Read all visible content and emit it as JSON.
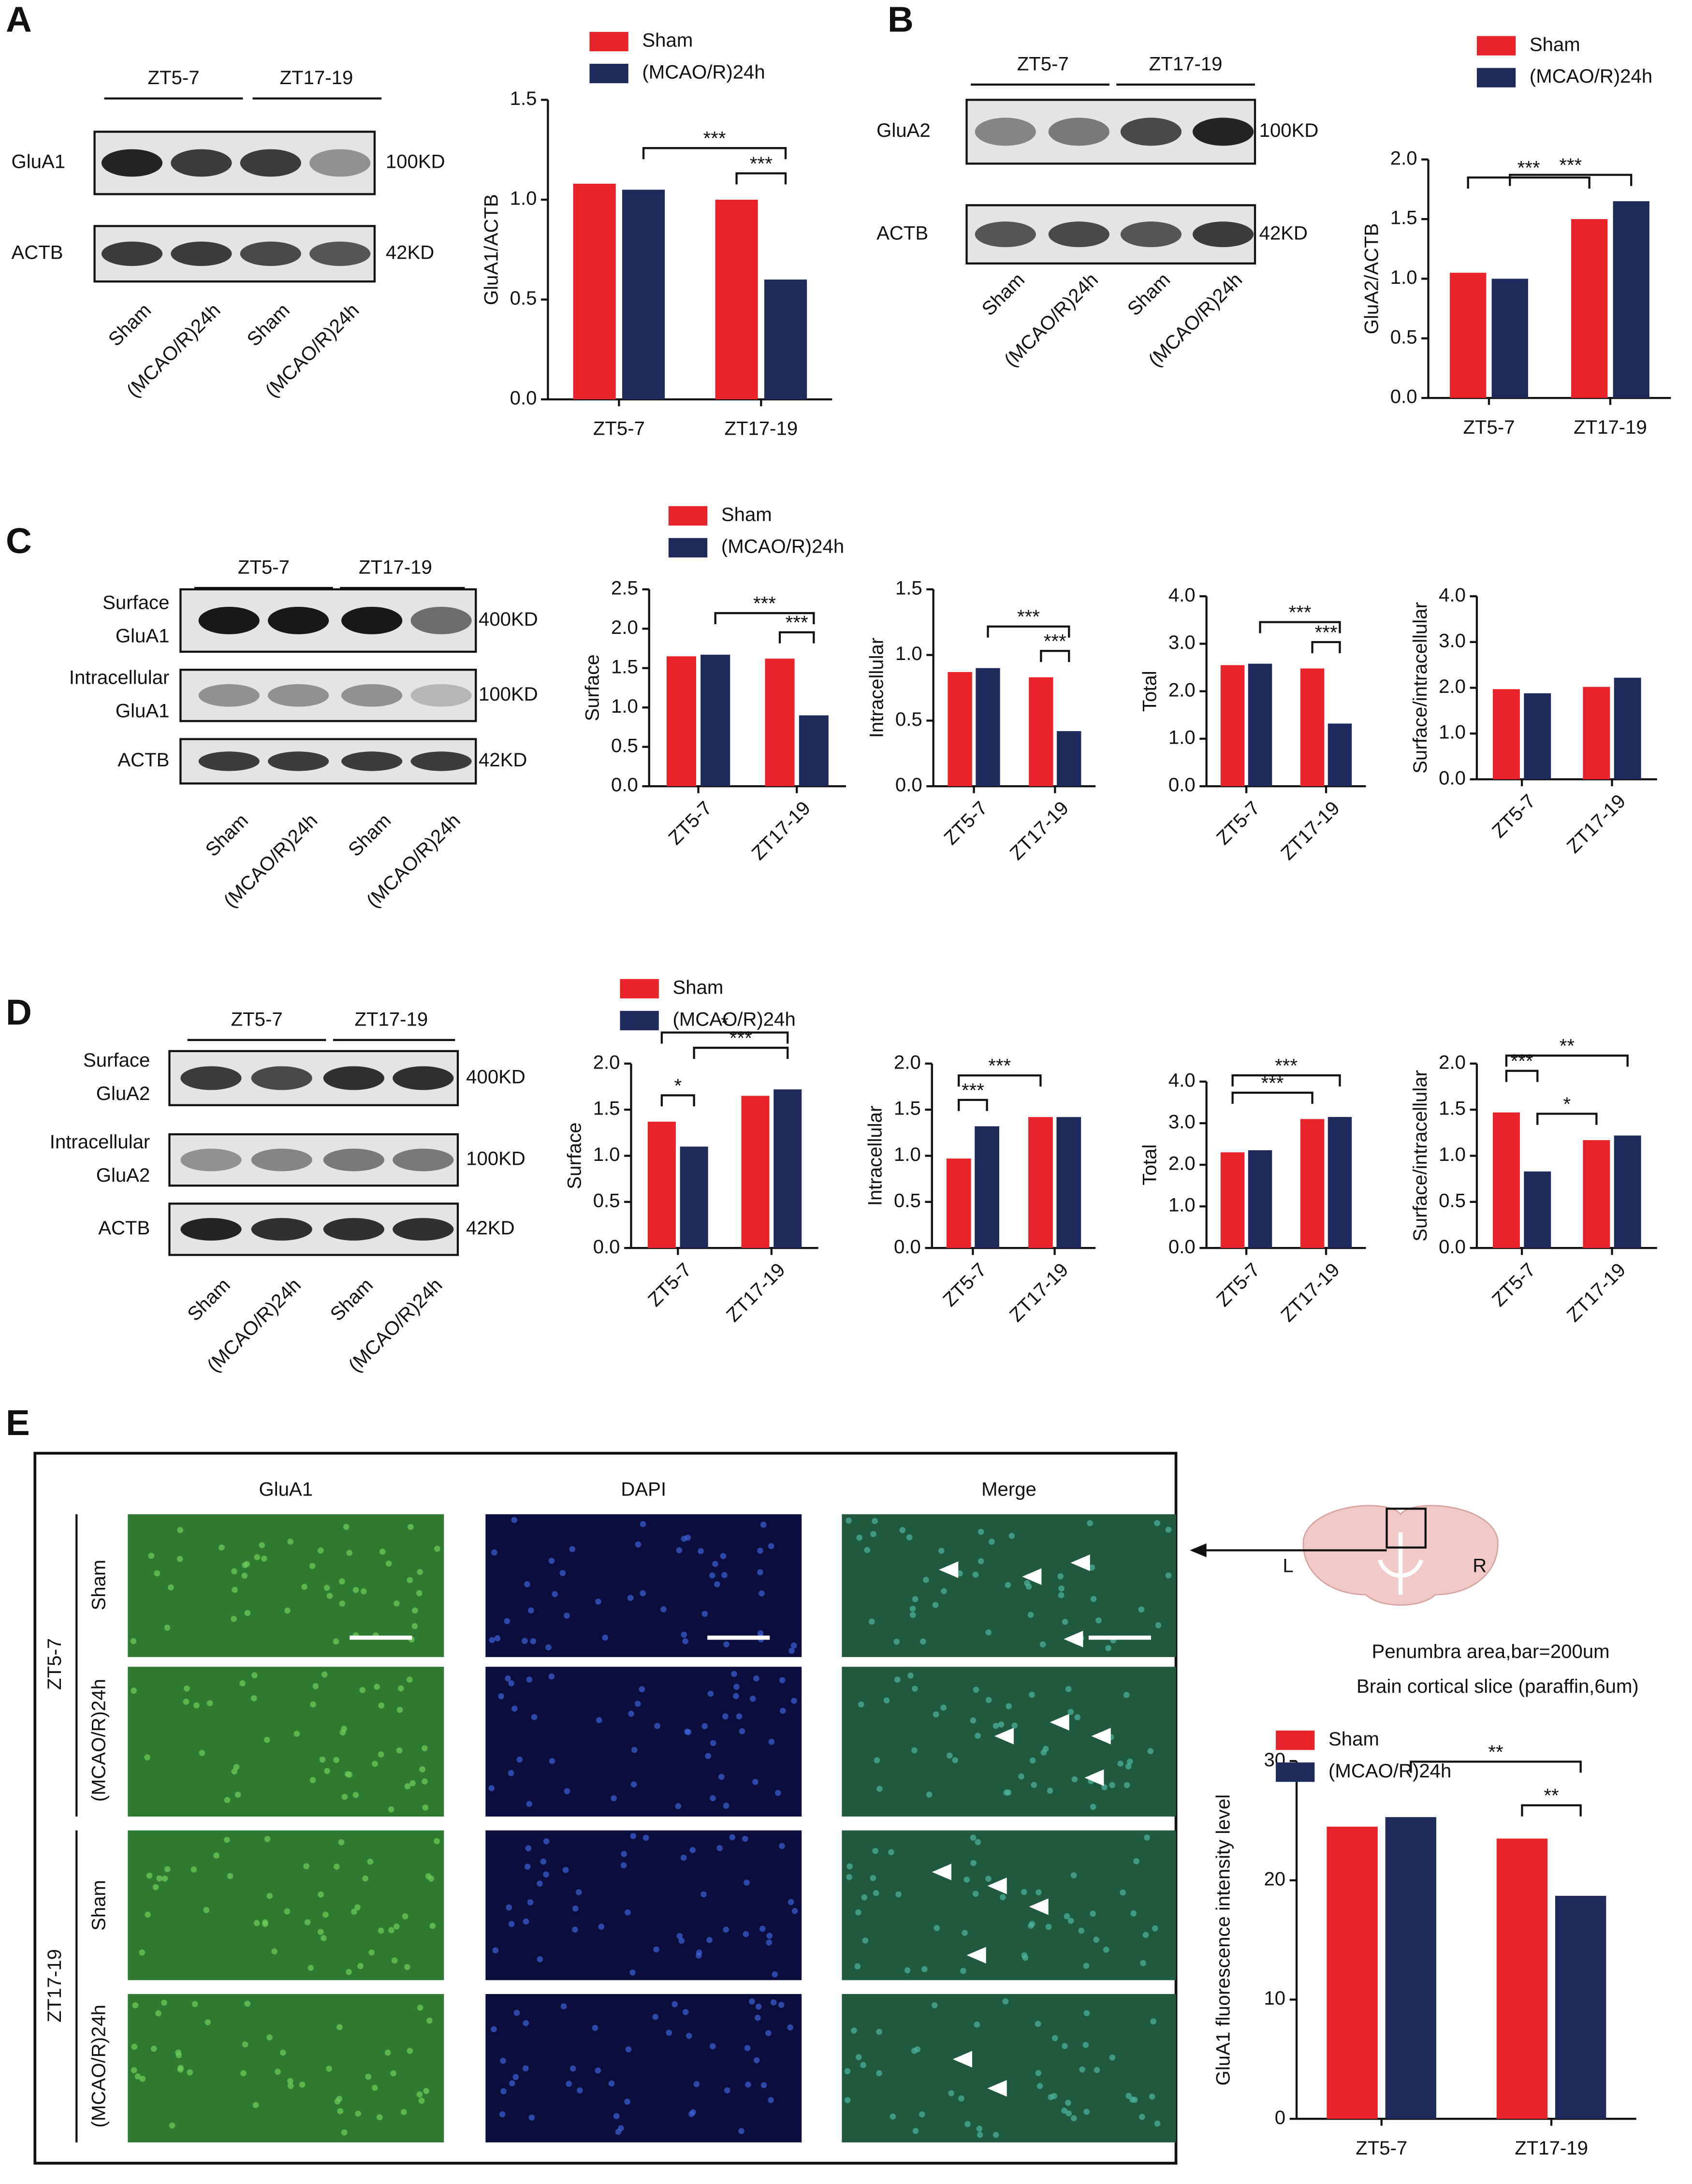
{
  "panel_labels": [
    "A",
    "B",
    "C",
    "D",
    "E"
  ],
  "blots": [
    {
      "groups": [
        "ZT5-7",
        "ZT17-19"
      ],
      "lanes": [
        "Sham",
        "(MCAO/R)24h",
        "Sham",
        "(MCAO/R)24h"
      ],
      "rows": [
        {
          "label": [
            "GluA1"
          ],
          "size": "100KD"
        },
        {
          "label": [
            "ACTB"
          ],
          "size": "42KD"
        }
      ]
    },
    {
      "groups": [
        "ZT5-7",
        "ZT17-19"
      ],
      "lanes": [
        "Sham",
        "(MCAO/R)24h",
        "Sham",
        "(MCAO/R)24h"
      ],
      "rows": [
        {
          "label": [
            "GluA2"
          ],
          "size": "100KD"
        },
        {
          "label": [
            "ACTB"
          ],
          "size": "42KD"
        }
      ]
    },
    {
      "groups": [
        "ZT5-7",
        "ZT17-19"
      ],
      "lanes": [
        "Sham",
        "(MCAO/R)24h",
        "Sham",
        "(MCAO/R)24h"
      ],
      "rows": [
        {
          "label": [
            "Surface",
            "GluA1"
          ],
          "size": "400KD"
        },
        {
          "label": [
            "Intracellular",
            "GluA1"
          ],
          "size": "100KD"
        },
        {
          "label": [
            "ACTB"
          ],
          "size": "42KD"
        }
      ]
    },
    {
      "groups": [
        "ZT5-7",
        "ZT17-19"
      ],
      "lanes": [
        "Sham",
        "(MCAO/R)24h",
        "Sham",
        "(MCAO/R)24h"
      ],
      "rows": [
        {
          "label": [
            "Surface",
            "GluA2"
          ],
          "size": "400KD"
        },
        {
          "label": [
            "Intracellular",
            "GluA2"
          ],
          "size": "100KD"
        },
        {
          "label": [
            "ACTB"
          ],
          "size": "42KD"
        }
      ]
    }
  ],
  "micrographs": {
    "columns": [
      "GluA1",
      "DAPI",
      "Merge"
    ],
    "groups": [
      "ZT5-7",
      "ZT17-19"
    ],
    "rows": [
      "Sham",
      "(MCAO/R)24h",
      "Sham",
      "(MCAO/R)24h"
    ],
    "diagram": {
      "left": "L",
      "right": "R"
    },
    "caption": [
      "Penumbra area,bar=200um",
      "Brain cortical slice (paraffin,6um)"
    ]
  },
  "chart_data": [
    {
      "type": "bar",
      "ylabel": "GluA1/ACTB",
      "categories": [
        "ZT5-7",
        "ZT17-19"
      ],
      "legend": true,
      "series": [
        {
          "name": "Sham",
          "color": "#e8232a",
          "values": [
            1.08,
            1.0
          ]
        },
        {
          "name": "(MCAO/R)24h",
          "color": "#1f2a5c",
          "values": [
            1.05,
            0.6
          ]
        }
      ],
      "ylim": [
        0,
        1.5
      ],
      "yticks": [
        {
          "value": 0,
          "label": "0.0"
        },
        0.5,
        {
          "value": 1,
          "label": "1.0"
        },
        1.5
      ],
      "annotations": [
        "***",
        "***"
      ]
    },
    {
      "type": "bar",
      "ylabel": "GluA2/ACTB",
      "categories": [
        "ZT5-7",
        "ZT17-19"
      ],
      "legend": true,
      "series": [
        {
          "name": "Sham",
          "color": "#e8232a",
          "values": [
            1.05,
            1.5
          ]
        },
        {
          "name": "(MCAO/R)24h",
          "color": "#1f2a5c",
          "values": [
            1.0,
            1.65
          ]
        }
      ],
      "ylim": [
        0,
        2
      ],
      "yticks": [
        {
          "value": 0,
          "label": "0.0"
        },
        0.5,
        {
          "value": 1,
          "label": "1.0"
        },
        1.5,
        {
          "value": 2,
          "label": "2.0"
        }
      ],
      "annotations": [
        "***",
        "***"
      ]
    },
    {
      "type": "bar",
      "ylabel": "Surface",
      "categories": [
        "ZT5-7",
        "ZT17-19"
      ],
      "legend": true,
      "series": [
        {
          "name": "Sham",
          "color": "#e8232a",
          "values": [
            1.65,
            1.62
          ]
        },
        {
          "name": "(MCAO/R)24h",
          "color": "#1f2a5c",
          "values": [
            1.67,
            0.9
          ]
        }
      ],
      "ylim": [
        0,
        2.5
      ],
      "yticks": [
        {
          "value": 0,
          "label": "0.0"
        },
        0.5,
        {
          "value": 1,
          "label": "1.0"
        },
        1.5,
        {
          "value": 2,
          "label": "2.0"
        },
        2.5
      ],
      "annotations": [
        "***",
        "***"
      ]
    },
    {
      "type": "bar",
      "ylabel": "Intracellular",
      "categories": [
        "ZT5-7",
        "ZT17-19"
      ],
      "series": [
        {
          "color": "#e8232a",
          "values": [
            0.87,
            0.83
          ]
        },
        {
          "color": "#1f2a5c",
          "values": [
            0.9,
            0.42
          ]
        }
      ],
      "ylim": [
        0,
        1.5
      ],
      "yticks": [
        {
          "value": 0,
          "label": "0.0"
        },
        0.5,
        {
          "value": 1,
          "label": "1.0"
        },
        1.5
      ],
      "annotations": [
        "***",
        "***"
      ]
    },
    {
      "type": "bar",
      "ylabel": "Total",
      "categories": [
        "ZT5-7",
        "ZT17-19"
      ],
      "series": [
        {
          "color": "#e8232a",
          "values": [
            2.55,
            2.48
          ]
        },
        {
          "color": "#1f2a5c",
          "values": [
            2.58,
            1.32
          ]
        }
      ],
      "ylim": [
        0,
        4
      ],
      "yticks": [
        {
          "value": 0,
          "label": "0.0"
        },
        {
          "value": 1,
          "label": "1.0"
        },
        {
          "value": 2,
          "label": "2.0"
        },
        {
          "value": 3,
          "label": "3.0"
        },
        {
          "value": 4,
          "label": "4.0"
        }
      ],
      "annotations": [
        "***",
        "***"
      ]
    },
    {
      "type": "bar",
      "ylabel": "Surface/intracellular",
      "categories": [
        "ZT5-7",
        "ZT17-19"
      ],
      "series": [
        {
          "color": "#e8232a",
          "values": [
            1.97,
            2.02
          ]
        },
        {
          "color": "#1f2a5c",
          "values": [
            1.88,
            2.22
          ]
        }
      ],
      "ylim": [
        0,
        4
      ],
      "yticks": [
        {
          "value": 0,
          "label": "0.0"
        },
        {
          "value": 1,
          "label": "1.0"
        },
        {
          "value": 2,
          "label": "2.0"
        },
        {
          "value": 3,
          "label": "3.0"
        },
        {
          "value": 4,
          "label": "4.0"
        }
      ],
      "annotations": []
    },
    {
      "type": "bar",
      "ylabel": "Surface",
      "categories": [
        "ZT5-7",
        "ZT17-19"
      ],
      "legend": true,
      "series": [
        {
          "name": "Sham",
          "color": "#e8232a",
          "values": [
            1.37,
            1.65
          ]
        },
        {
          "name": "(MCAO/R)24h",
          "color": "#1f2a5c",
          "values": [
            1.1,
            1.72
          ]
        }
      ],
      "ylim": [
        0,
        2
      ],
      "yticks": [
        {
          "value": 0,
          "label": "0.0"
        },
        0.5,
        {
          "value": 1,
          "label": "1.0"
        },
        1.5,
        {
          "value": 2,
          "label": "2.0"
        }
      ],
      "annotations": [
        "*",
        "***",
        "*"
      ]
    },
    {
      "type": "bar",
      "ylabel": "Intracellular",
      "categories": [
        "ZT5-7",
        "ZT17-19"
      ],
      "series": [
        {
          "color": "#e8232a",
          "values": [
            0.97,
            1.42
          ]
        },
        {
          "color": "#1f2a5c",
          "values": [
            1.32,
            1.42
          ]
        }
      ],
      "ylim": [
        0,
        2
      ],
      "yticks": [
        {
          "value": 0,
          "label": "0.0"
        },
        0.5,
        {
          "value": 1,
          "label": "1.0"
        },
        1.5,
        {
          "value": 2,
          "label": "2.0"
        }
      ],
      "annotations": [
        "***",
        "***"
      ]
    },
    {
      "type": "bar",
      "ylabel": "Total",
      "categories": [
        "ZT5-7",
        "ZT17-19"
      ],
      "series": [
        {
          "color": "#e8232a",
          "values": [
            2.3,
            3.1
          ]
        },
        {
          "color": "#1f2a5c",
          "values": [
            2.35,
            3.15
          ]
        }
      ],
      "ylim": [
        0,
        4
      ],
      "yticks": [
        {
          "value": 0,
          "label": "0.0"
        },
        {
          "value": 1,
          "label": "1.0"
        },
        {
          "value": 2,
          "label": "2.0"
        },
        {
          "value": 3,
          "label": "3.0"
        },
        {
          "value": 4,
          "label": "4.0"
        }
      ],
      "annotations": [
        "***",
        "***"
      ]
    },
    {
      "type": "bar",
      "ylabel": "Surface/intracellular",
      "categories": [
        "ZT5-7",
        "ZT17-19"
      ],
      "series": [
        {
          "color": "#e8232a",
          "values": [
            1.47,
            1.17
          ]
        },
        {
          "color": "#1f2a5c",
          "values": [
            0.83,
            1.22
          ]
        }
      ],
      "ylim": [
        0,
        2
      ],
      "yticks": [
        {
          "value": 0,
          "label": "0.0"
        },
        0.5,
        {
          "value": 1,
          "label": "1.0"
        },
        1.5,
        {
          "value": 2,
          "label": "2.0"
        }
      ],
      "annotations": [
        "***",
        "**",
        "*"
      ]
    },
    {
      "type": "bar",
      "ylabel": "GluA1 fluorescence intensity level",
      "categories": [
        "ZT5-7",
        "ZT17-19"
      ],
      "legend": true,
      "series": [
        {
          "name": "Sham",
          "color": "#e8232a",
          "values": [
            24.5,
            23.5
          ]
        },
        {
          "name": "(MCAO/R)24h",
          "color": "#1f2a5c",
          "values": [
            25.3,
            18.7
          ]
        }
      ],
      "ylim": [
        0,
        30
      ],
      "yticks": [
        0,
        10,
        20,
        30
      ],
      "annotations": [
        "**",
        "**"
      ]
    }
  ]
}
